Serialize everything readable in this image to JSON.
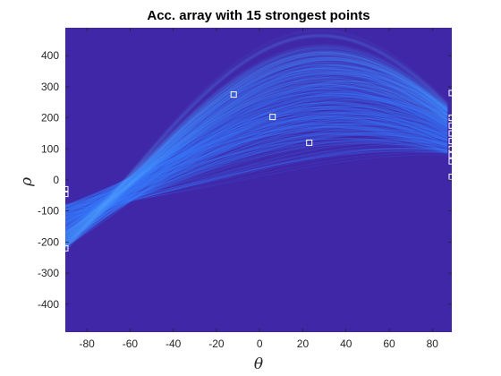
{
  "chart_data": {
    "type": "heatmap",
    "title": "Acc. array with 15 strongest points",
    "xlabel": "θ",
    "ylabel": "ρ",
    "xlim": [
      -90,
      89
    ],
    "ylim": [
      -490,
      490
    ],
    "y_reversed": false,
    "x_ticks": [
      -80,
      -60,
      -40,
      -20,
      0,
      20,
      40,
      60,
      80
    ],
    "y_ticks": [
      -400,
      -300,
      -200,
      -100,
      0,
      100,
      200,
      300,
      400
    ],
    "grid": false,
    "colormap": "parula",
    "background_color": "#3f27a8",
    "intensity_color": "#3a7dff",
    "marker_color": "#ffffff",
    "marker_shape": "square",
    "peaks": [
      {
        "theta": -90,
        "rho": -30
      },
      {
        "theta": -90,
        "rho": -45
      },
      {
        "theta": -90,
        "rho": -220
      },
      {
        "theta": -12,
        "rho": 275
      },
      {
        "theta": 6,
        "rho": 203
      },
      {
        "theta": 23,
        "rho": 120
      },
      {
        "theta": 89,
        "rho": 280
      },
      {
        "theta": 89,
        "rho": 200
      },
      {
        "theta": 89,
        "rho": 175
      },
      {
        "theta": 89,
        "rho": 150
      },
      {
        "theta": 89,
        "rho": 125
      },
      {
        "theta": 89,
        "rho": 100
      },
      {
        "theta": 89,
        "rho": 80
      },
      {
        "theta": 89,
        "rho": 60
      },
      {
        "theta": 89,
        "rho": 10
      }
    ]
  }
}
